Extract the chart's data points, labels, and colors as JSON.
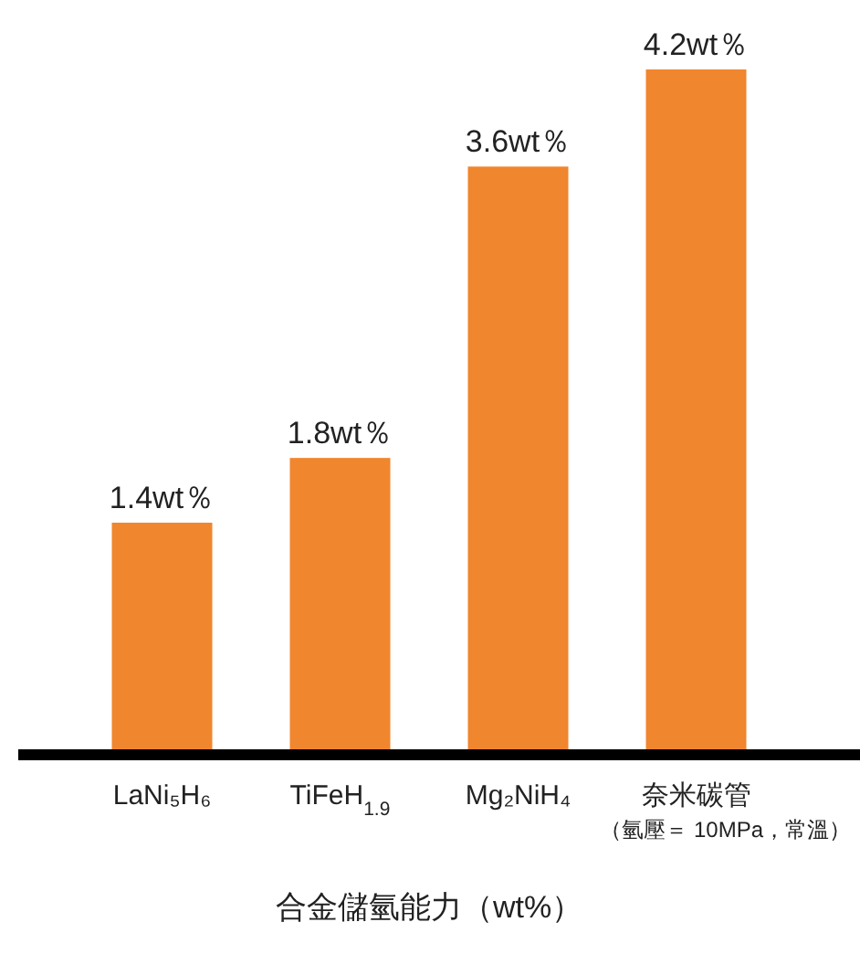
{
  "chart_data": {
    "type": "bar",
    "title": "合金儲氫能力（wt%）",
    "categories": [
      "LaNi₅H₆",
      "TiFeH$_{1.9}$",
      "Mg₂NiH₄",
      "奈米碳管"
    ],
    "values": [
      1.4,
      1.8,
      3.6,
      4.2
    ],
    "value_labels": [
      "1.4wt％",
      "1.8wt％",
      "3.6wt％",
      "4.2wt％"
    ],
    "color": "#f0862e",
    "annotations": [
      "（氫壓＝ 10MPa，常溫）"
    ]
  }
}
